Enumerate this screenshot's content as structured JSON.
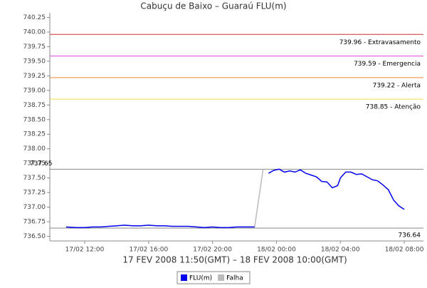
{
  "chart_data": {
    "type": "line",
    "title": "Cabuçu de Baixo – Guaraú FLU(m)",
    "x_label": "17 FEV 2008 11:50(GMT) – 18 FEV 2008 10:00(GMT)",
    "x": [
      "2008-02-17T10:50",
      "2008-02-17T11:30",
      "2008-02-17T12:00",
      "2008-02-17T12:30",
      "2008-02-17T13:00",
      "2008-02-17T13:30",
      "2008-02-17T14:00",
      "2008-02-17T14:30",
      "2008-02-17T15:00",
      "2008-02-17T15:30",
      "2008-02-17T16:00",
      "2008-02-17T16:30",
      "2008-02-17T17:00",
      "2008-02-17T17:30",
      "2008-02-17T18:00",
      "2008-02-17T18:30",
      "2008-02-17T19:00",
      "2008-02-17T19:30",
      "2008-02-17T20:00",
      "2008-02-17T20:30",
      "2008-02-17T21:00",
      "2008-02-17T21:30",
      "2008-02-17T22:00",
      "2008-02-17T22:38",
      "2008-02-17T23:10",
      "2008-02-17T23:30",
      "2008-02-17T23:50",
      "2008-02-18T00:10",
      "2008-02-18T00:30",
      "2008-02-18T00:50",
      "2008-02-18T01:10",
      "2008-02-18T01:30",
      "2008-02-18T01:50",
      "2008-02-18T02:10",
      "2008-02-18T02:30",
      "2008-02-18T02:50",
      "2008-02-18T03:10",
      "2008-02-18T03:30",
      "2008-02-18T03:50",
      "2008-02-18T04:00",
      "2008-02-18T04:20",
      "2008-02-18T04:40",
      "2008-02-18T05:00",
      "2008-02-18T05:20",
      "2008-02-18T05:40",
      "2008-02-18T06:00",
      "2008-02-18T06:20",
      "2008-02-18T06:40",
      "2008-02-18T07:00",
      "2008-02-18T07:20",
      "2008-02-18T07:40",
      "2008-02-18T08:00"
    ],
    "series": [
      {
        "name": "FLU(m)",
        "color": "#0000ee",
        "values": [
          736.66,
          736.65,
          736.65,
          736.66,
          736.66,
          736.67,
          736.68,
          736.69,
          736.68,
          736.68,
          736.69,
          736.68,
          736.68,
          736.67,
          736.67,
          736.67,
          736.66,
          736.65,
          736.66,
          736.65,
          736.65,
          736.66,
          736.66,
          736.66,
          null,
          737.58,
          737.63,
          737.65,
          737.6,
          737.62,
          737.6,
          737.64,
          737.58,
          737.55,
          737.52,
          737.44,
          737.43,
          737.33,
          737.37,
          737.5,
          737.6,
          737.6,
          737.56,
          737.57,
          737.52,
          737.47,
          737.45,
          737.38,
          737.3,
          737.12,
          737.02,
          736.96
        ]
      },
      {
        "name": "Falha",
        "color": "#bbbbbb",
        "values": [
          null,
          null,
          null,
          null,
          null,
          null,
          null,
          null,
          null,
          null,
          null,
          null,
          null,
          null,
          null,
          null,
          null,
          null,
          null,
          null,
          null,
          null,
          null,
          736.66,
          737.65,
          null,
          null,
          null,
          null,
          null,
          null,
          null,
          null,
          null,
          null,
          null,
          null,
          null,
          null,
          null,
          null,
          null,
          null,
          null,
          null,
          null,
          null,
          null,
          null,
          null,
          null,
          null
        ]
      }
    ],
    "xlim": [
      "2008-02-17T09:49",
      "2008-02-18T09:12"
    ],
    "xticks": [
      {
        "value": "2008-02-17T12:00",
        "label": "17/02 12:00"
      },
      {
        "value": "2008-02-17T16:00",
        "label": "17/02 16:00"
      },
      {
        "value": "2008-02-17T20:00",
        "label": "17/02 20:00"
      },
      {
        "value": "2008-02-18T00:00",
        "label": "18/02 00:00"
      },
      {
        "value": "2008-02-18T04:00",
        "label": "18/02 04:00"
      },
      {
        "value": "2008-02-18T08:00",
        "label": "18/02 08:00"
      }
    ],
    "ylim": [
      736.42,
      740.33
    ],
    "yticks": [
      {
        "value": 736.5,
        "label": "736.50"
      },
      736.75,
      {
        "value": 737,
        "label": "737.00"
      },
      737.25,
      {
        "value": 737.5,
        "label": "737.50"
      },
      737.75,
      {
        "value": 738,
        "label": "738.00"
      },
      738.25,
      {
        "value": 738.5,
        "label": "738.50"
      },
      738.75,
      {
        "value": 739,
        "label": "739.00"
      },
      739.25,
      {
        "value": 739.5,
        "label": "739.50"
      },
      739.75,
      {
        "value": 740,
        "label": "740.00"
      },
      740.25
    ],
    "reference_lines": [
      {
        "value": 739.96,
        "label": "739.96 - Extravasamento",
        "color": "#cc3333"
      },
      {
        "value": 739.59,
        "label": "739.59 - Emergencia",
        "color": "#dd44dd"
      },
      {
        "value": 739.22,
        "label": "739.22 - Alerta",
        "color": "#ee8833"
      },
      {
        "value": 738.85,
        "label": "738.85 - Atenção",
        "color": "#eedd44"
      }
    ],
    "max_line": {
      "value": 737.65,
      "label": "737.65",
      "color": "#888888"
    },
    "min_line": {
      "value": 736.64,
      "label": "736.64",
      "color": "#888888"
    }
  }
}
